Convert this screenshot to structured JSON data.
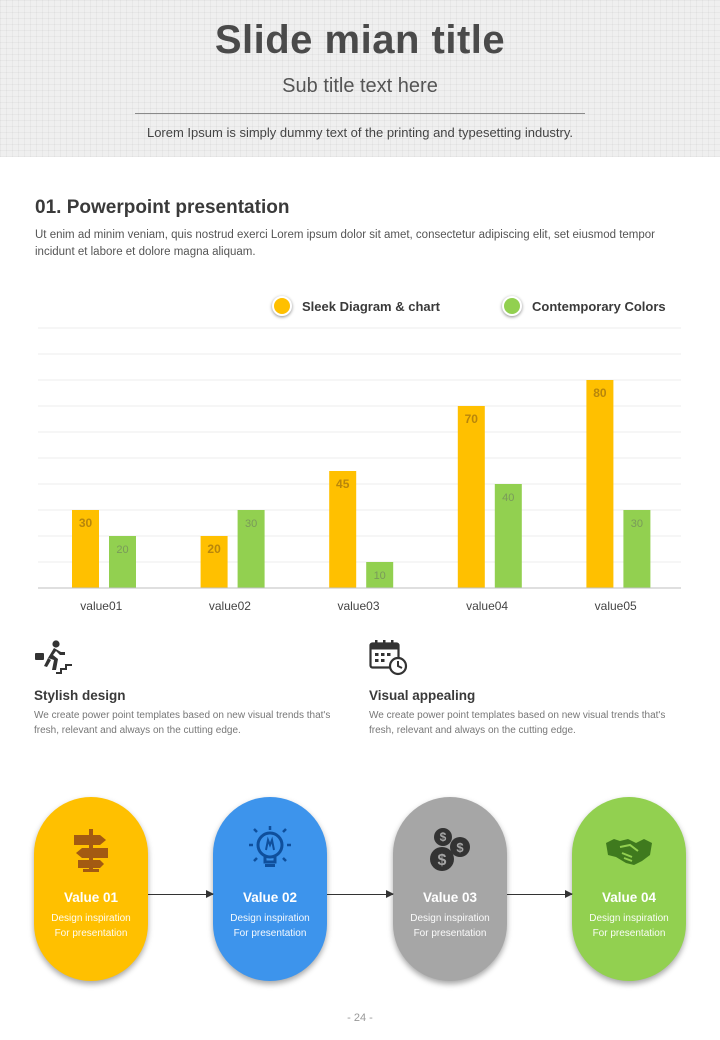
{
  "header": {
    "title": "Slide mian title",
    "subtitle": "Sub title text here",
    "description": "Lorem Ipsum is simply dummy text of the printing and typesetting industry."
  },
  "section": {
    "title": "01. Powerpoint presentation",
    "description": "Ut enim ad minim veniam, quis nostrud exerci  Lorem ipsum dolor sit amet, consectetur adipiscing elit, set eiusmod tempor incidunt et labore et dolore magna aliquam."
  },
  "legend": [
    {
      "label": "Sleek Diagram & chart",
      "color": "#ffc000",
      "icon": "yellow-dot"
    },
    {
      "label": "Contemporary Colors",
      "color": "#92d050",
      "icon": "green-dot"
    }
  ],
  "chart_data": {
    "type": "bar",
    "categories": [
      "value01",
      "value02",
      "value03",
      "value04",
      "value05"
    ],
    "series": [
      {
        "name": "Sleek Diagram & chart",
        "color": "#ffc000",
        "label_color": "#b8860b",
        "values": [
          30,
          20,
          45,
          70,
          80
        ]
      },
      {
        "name": "Contemporary Colors",
        "color": "#92d050",
        "label_color": "#7a9a5a",
        "values": [
          20,
          30,
          10,
          40,
          30
        ]
      }
    ],
    "ylim": [
      0,
      100
    ],
    "grid": true,
    "legend_position": "top-right",
    "data_labels": true
  },
  "features": [
    {
      "title": "Stylish design",
      "description": "We create power point templates based on new visual trends that's fresh, relevant and always on the cutting edge.",
      "icon": "running-man-stairs-icon"
    },
    {
      "title": "Visual appealing",
      "description": "We create power point templates based on new visual trends that's fresh, relevant and always on the cutting edge.",
      "icon": "calendar-clock-icon"
    }
  ],
  "process": [
    {
      "title": "Value 01",
      "text": "Design inspiration For presentation",
      "color": "#ffc000",
      "icon": "signpost-icon"
    },
    {
      "title": "Value 02",
      "text": "Design inspiration For presentation",
      "color": "#3d94ec",
      "icon": "lightbulb-icon"
    },
    {
      "title": "Value 03",
      "text": "Design inspiration For presentation",
      "color": "#a6a6a6",
      "icon": "dollar-coins-icon"
    },
    {
      "title": "Value 04",
      "text": "Design inspiration For presentation",
      "color": "#92d050",
      "icon": "handshake-icon"
    }
  ],
  "page_number": "- 24 -"
}
